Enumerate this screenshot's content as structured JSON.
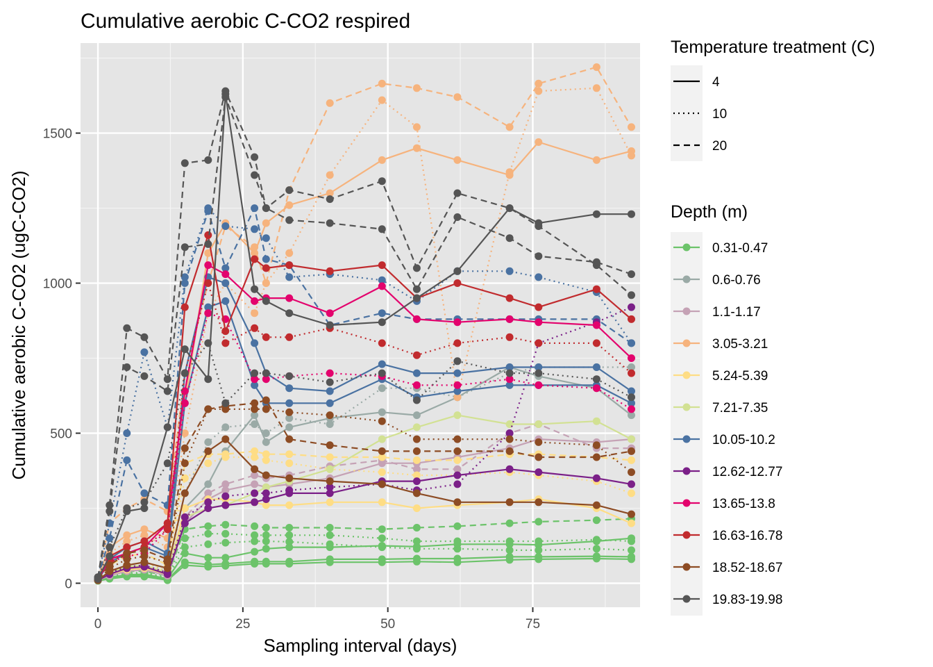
{
  "chart_data": {
    "type": "line",
    "title": "Cumulative aerobic C-CO2 respired",
    "xlabel": "Sampling interval (days)",
    "ylabel": "Cumulative aerobic C-CO2 (ugC-CO2)",
    "xlim": [
      -3,
      93.5
    ],
    "ylim": [
      -80,
      1800
    ],
    "xticks": [
      0,
      25,
      50,
      75
    ],
    "yticks": [
      0,
      500,
      1000,
      1500
    ],
    "x": [
      0,
      2,
      5,
      8,
      12,
      15,
      19,
      22,
      27,
      29,
      33,
      40,
      49,
      55,
      62,
      71,
      76,
      86,
      92
    ],
    "grid": true,
    "legend_position": "right",
    "linetype_legend": {
      "title": "Temperature treatment (C)",
      "entries": [
        {
          "label": "4",
          "dash": "solid"
        },
        {
          "label": "10",
          "dash": "dotted"
        },
        {
          "label": "20",
          "dash": "dashed"
        }
      ]
    },
    "color_legend": {
      "title": "Depth (m)",
      "entries": [
        {
          "label": "0.31-0.47",
          "color": "#6cc36a"
        },
        {
          "label": "0.6-0.76",
          "color": "#9aaaa6"
        },
        {
          "label": "1.1-1.17",
          "color": "#c5a2b5"
        },
        {
          "label": "3.05-3.21",
          "color": "#f6b37d"
        },
        {
          "label": "5.24-5.39",
          "color": "#fedd85"
        },
        {
          "label": "7.21-7.35",
          "color": "#d2e193"
        },
        {
          "label": "10.05-10.2",
          "color": "#4a72a2"
        },
        {
          "label": "12.62-12.77",
          "color": "#7b2088"
        },
        {
          "label": "13.65-13.8",
          "color": "#e3036d"
        },
        {
          "label": "16.63-16.78",
          "color": "#c12b2e"
        },
        {
          "label": "18.52-18.67",
          "color": "#8d4c24"
        },
        {
          "label": "19.83-19.98",
          "color": "#555555"
        }
      ]
    },
    "series": [
      {
        "depth": 0,
        "temp": 0,
        "values": [
          8,
          15,
          22,
          22,
          10,
          60,
          55,
          58,
          65,
          65,
          65,
          70,
          70,
          72,
          70,
          78,
          80,
          82,
          80
        ]
      },
      {
        "depth": 0,
        "temp": 0,
        "values": [
          10,
          18,
          25,
          25,
          12,
          70,
          62,
          65,
          72,
          72,
          72,
          80,
          80,
          82,
          82,
          88,
          88,
          90,
          88
        ]
      },
      {
        "depth": 0,
        "temp": 0,
        "values": [
          12,
          20,
          28,
          30,
          15,
          100,
          85,
          85,
          105,
          115,
          120,
          120,
          125,
          122,
          130,
          130,
          128,
          140,
          150
        ]
      },
      {
        "depth": 0,
        "temp": 1,
        "values": [
          10,
          22,
          30,
          32,
          18,
          120,
          130,
          135,
          140,
          140,
          138,
          130,
          120,
          115,
          115,
          110,
          110,
          115,
          110
        ]
      },
      {
        "depth": 0,
        "temp": 1,
        "values": [
          12,
          25,
          35,
          35,
          20,
          150,
          165,
          165,
          160,
          160,
          160,
          160,
          150,
          140,
          140,
          140,
          140,
          145,
          140
        ]
      },
      {
        "depth": 0,
        "temp": 2,
        "values": [
          15,
          30,
          40,
          40,
          25,
          180,
          190,
          195,
          190,
          185,
          185,
          185,
          180,
          185,
          190,
          200,
          205,
          210,
          215
        ]
      },
      {
        "depth": 1,
        "temp": 0,
        "values": [
          12,
          30,
          50,
          55,
          30,
          250,
          330,
          440,
          560,
          470,
          520,
          550,
          570,
          560,
          620,
          720,
          690,
          650,
          560
        ]
      },
      {
        "depth": 1,
        "temp": 1,
        "values": [
          14,
          35,
          60,
          70,
          40,
          300,
          470,
          520,
          530,
          500,
          550,
          530,
          650,
          650,
          620,
          700,
          720,
          720,
          720
        ]
      },
      {
        "depth": 2,
        "temp": 0,
        "values": [
          10,
          25,
          40,
          45,
          25,
          200,
          280,
          310,
          330,
          320,
          330,
          350,
          400,
          400,
          420,
          450,
          480,
          470,
          480
        ]
      },
      {
        "depth": 2,
        "temp": 2,
        "values": [
          12,
          30,
          45,
          50,
          30,
          220,
          300,
          330,
          360,
          350,
          360,
          390,
          410,
          380,
          380,
          500,
          530,
          450,
          450
        ]
      },
      {
        "depth": 3,
        "temp": 0,
        "values": [
          20,
          120,
          160,
          180,
          150,
          600,
          1100,
          1200,
          1100,
          1200,
          1260,
          1300,
          1410,
          1450,
          1410,
          1360,
          1470,
          1410,
          1440
        ]
      },
      {
        "depth": 3,
        "temp": 1,
        "values": [
          15,
          100,
          140,
          160,
          120,
          500,
          900,
          1000,
          900,
          1000,
          1100,
          1360,
          1610,
          1520,
          620,
          1370,
          1640,
          1650,
          1425
        ]
      },
      {
        "depth": 3,
        "temp": 2,
        "values": [
          20,
          200,
          250,
          280,
          240,
          700,
          1000,
          1190,
          1120,
          1000,
          1310,
          1600,
          1665,
          1650,
          1620,
          1520,
          1665,
          1720,
          1520
        ]
      },
      {
        "depth": 4,
        "temp": 0,
        "values": [
          10,
          30,
          45,
          50,
          30,
          250,
          280,
          280,
          270,
          260,
          260,
          270,
          270,
          250,
          260,
          270,
          280,
          250,
          200
        ]
      },
      {
        "depth": 4,
        "temp": 1,
        "values": [
          12,
          40,
          60,
          70,
          40,
          350,
          400,
          420,
          420,
          410,
          400,
          380,
          370,
          360,
          360,
          370,
          360,
          340,
          300
        ]
      },
      {
        "depth": 4,
        "temp": 2,
        "values": [
          15,
          60,
          90,
          100,
          60,
          400,
          430,
          430,
          440,
          430,
          430,
          420,
          420,
          410,
          410,
          430,
          430,
          420,
          410
        ]
      },
      {
        "depth": 5,
        "temp": 0,
        "values": [
          12,
          35,
          55,
          60,
          35,
          220,
          250,
          260,
          300,
          320,
          340,
          380,
          480,
          520,
          560,
          530,
          530,
          540,
          480
        ]
      },
      {
        "depth": 6,
        "temp": 0,
        "values": [
          15,
          80,
          120,
          140,
          100,
          700,
          1020,
          1000,
          800,
          700,
          650,
          640,
          730,
          700,
          700,
          720,
          720,
          720,
          640
        ]
      },
      {
        "depth": 6,
        "temp": 0,
        "values": [
          12,
          70,
          100,
          120,
          90,
          600,
          920,
          940,
          660,
          600,
          600,
          600,
          680,
          620,
          640,
          660,
          660,
          660,
          600
        ]
      },
      {
        "depth": 6,
        "temp": 1,
        "values": [
          18,
          200,
          500,
          770,
          520,
          1020,
          1250,
          1190,
          1180,
          1150,
          1020,
          1030,
          1010,
          940,
          1040,
          1040,
          1020,
          970,
          800
        ]
      },
      {
        "depth": 6,
        "temp": 2,
        "values": [
          20,
          150,
          410,
          300,
          260,
          1000,
          1240,
          1050,
          1250,
          1080,
          1060,
          860,
          900,
          880,
          880,
          880,
          880,
          880,
          800
        ]
      },
      {
        "depth": 7,
        "temp": 0,
        "values": [
          10,
          30,
          50,
          55,
          30,
          200,
          250,
          260,
          270,
          280,
          300,
          300,
          340,
          340,
          360,
          380,
          370,
          350,
          330
        ]
      },
      {
        "depth": 7,
        "temp": 1,
        "values": [
          12,
          35,
          55,
          60,
          35,
          220,
          270,
          290,
          300,
          300,
          310,
          320,
          330,
          310,
          330,
          500,
          800,
          870,
          920
        ]
      },
      {
        "depth": 8,
        "temp": 0,
        "values": [
          12,
          80,
          100,
          120,
          200,
          640,
          1060,
          1030,
          940,
          950,
          950,
          900,
          990,
          880,
          870,
          880,
          870,
          860,
          750
        ]
      },
      {
        "depth": 8,
        "temp": 1,
        "values": [
          14,
          70,
          90,
          100,
          180,
          600,
          900,
          880,
          680,
          680,
          690,
          700,
          690,
          660,
          660,
          680,
          660,
          650,
          580
        ]
      },
      {
        "depth": 9,
        "temp": 0,
        "values": [
          15,
          90,
          120,
          140,
          200,
          920,
          1160,
          840,
          1080,
          1050,
          1060,
          1040,
          1060,
          950,
          1000,
          950,
          920,
          980,
          880
        ]
      },
      {
        "depth": 9,
        "temp": 1,
        "values": [
          12,
          70,
          100,
          120,
          180,
          700,
          1000,
          800,
          850,
          820,
          820,
          850,
          800,
          760,
          800,
          820,
          800,
          800,
          700
        ]
      },
      {
        "depth": 10,
        "temp": 0,
        "values": [
          10,
          40,
          60,
          70,
          50,
          300,
          440,
          480,
          380,
          360,
          350,
          340,
          330,
          300,
          270,
          270,
          270,
          260,
          230
        ]
      },
      {
        "depth": 10,
        "temp": 1,
        "values": [
          12,
          50,
          80,
          90,
          70,
          400,
          580,
          580,
          580,
          580,
          570,
          560,
          540,
          480,
          480,
          480,
          470,
          460,
          370
        ]
      },
      {
        "depth": 10,
        "temp": 2,
        "values": [
          15,
          60,
          100,
          110,
          80,
          450,
          580,
          590,
          600,
          610,
          480,
          460,
          440,
          440,
          440,
          440,
          420,
          420,
          440
        ]
      },
      {
        "depth": 11,
        "temp": 0,
        "values": [
          15,
          90,
          240,
          250,
          520,
          780,
          680,
          1630,
          980,
          940,
          900,
          860,
          870,
          950,
          1040,
          1250,
          1200,
          1230,
          1230
        ]
      },
      {
        "depth": 11,
        "temp": 2,
        "values": [
          20,
          260,
          850,
          820,
          680,
          1400,
          1410,
          1640,
          1420,
          1250,
          1310,
          1280,
          1340,
          1050,
          1300,
          1250,
          1190,
          1060,
          960
        ]
      },
      {
        "depth": 11,
        "temp": 2,
        "values": [
          18,
          240,
          720,
          690,
          640,
          1120,
          1130,
          1620,
          1360,
          1250,
          1210,
          1200,
          1180,
          980,
          1220,
          1150,
          1090,
          1070,
          1030
        ]
      },
      {
        "depth": 11,
        "temp": 1,
        "values": [
          14,
          120,
          250,
          270,
          400,
          700,
          800,
          600,
          700,
          700,
          690,
          670,
          700,
          610,
          740,
          700,
          700,
          680,
          620
        ]
      }
    ]
  }
}
